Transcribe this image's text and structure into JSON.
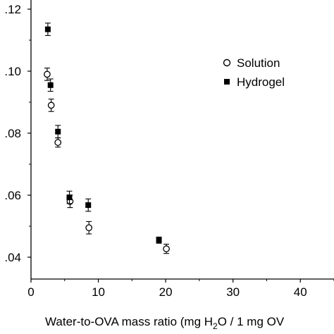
{
  "chart_data": {
    "type": "scatter",
    "title": "",
    "xlabel_parts": {
      "before_sub": "Water-to-OVA mass ratio (mg H",
      "sub": "2",
      "after_sub": "O / 1 mg OV"
    },
    "ylabel": "",
    "xlim": [
      0,
      45
    ],
    "ylim": [
      0.03,
      0.12
    ],
    "x_ticks": [
      0,
      10,
      20,
      30,
      40
    ],
    "x_tick_labels": [
      "0",
      "10",
      "20",
      "30",
      "40"
    ],
    "y_ticks": [
      0.04,
      0.06,
      0.08,
      0.1,
      0.12
    ],
    "y_tick_labels": [
      ".04",
      ".06",
      ".08",
      ".10",
      ".12"
    ],
    "grid": false,
    "legend_position": "top-right",
    "series": [
      {
        "name": "Solution",
        "marker": "open-circle",
        "points": [
          {
            "x": 2.4,
            "y": 0.099,
            "err": 0.002
          },
          {
            "x": 3.0,
            "y": 0.089,
            "err": 0.002
          },
          {
            "x": 4.0,
            "y": 0.077,
            "err": 0.0015
          },
          {
            "x": 5.8,
            "y": 0.058,
            "err": 0.002
          },
          {
            "x": 8.6,
            "y": 0.0495,
            "err": 0.002
          },
          {
            "x": 20.1,
            "y": 0.0427,
            "err": 0.0015
          }
        ]
      },
      {
        "name": "Hydrogel",
        "marker": "filled-square",
        "points": [
          {
            "x": 2.5,
            "y": 0.1135,
            "err": 0.002
          },
          {
            "x": 2.9,
            "y": 0.0955,
            "err": 0.002
          },
          {
            "x": 4.0,
            "y": 0.0805,
            "err": 0.002
          },
          {
            "x": 5.7,
            "y": 0.0593,
            "err": 0.002
          },
          {
            "x": 8.5,
            "y": 0.0568,
            "err": 0.002
          },
          {
            "x": 19.0,
            "y": 0.0455,
            "err": 0.001
          }
        ]
      }
    ]
  },
  "colors": {
    "axis": "#000000",
    "marker": "#000000"
  }
}
